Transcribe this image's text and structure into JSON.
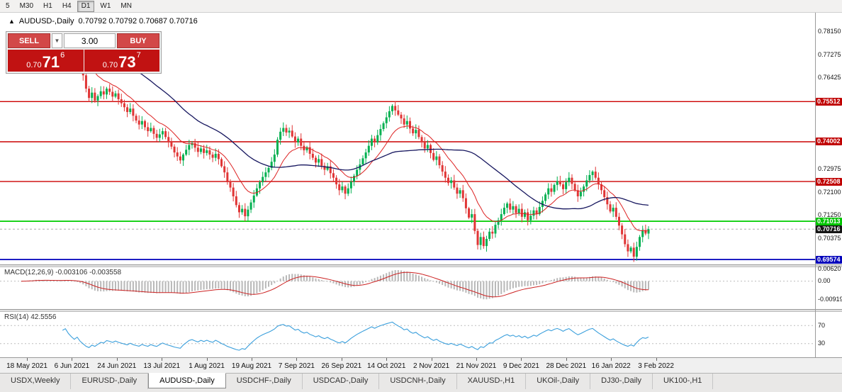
{
  "toolbar": {
    "timeframes": [
      {
        "label": "5",
        "active": false
      },
      {
        "label": "M30",
        "active": false
      },
      {
        "label": "H1",
        "active": false
      },
      {
        "label": "H4",
        "active": false
      },
      {
        "label": "D1",
        "active": true
      },
      {
        "label": "W1",
        "active": false
      },
      {
        "label": "MN",
        "active": false
      }
    ]
  },
  "chart_header": {
    "collapse_icon": "▲",
    "title": "AUDUSD-,Daily",
    "ohlc": "0.70792 0.70792 0.70687 0.70716"
  },
  "trade_panel": {
    "sell_label": "SELL",
    "buy_label": "BUY",
    "volume": "3.00",
    "dropdown_icon": "▼",
    "sell_price": {
      "small": "0.70",
      "big": "71",
      "sup": "6"
    },
    "buy_price": {
      "small": "0.70",
      "big": "73",
      "sup": "7"
    }
  },
  "price_axis": {
    "badge_colors": {
      "red": {
        "bg": "#c00000",
        "fg": "#ffffff"
      },
      "green": {
        "bg": "#00c400",
        "fg": "#ffffff"
      },
      "blue": {
        "bg": "#0000bb",
        "fg": "#ffffff"
      },
      "current": {
        "bg": "#151515",
        "fg": "#ffffff"
      }
    },
    "labels": [
      {
        "value": "0.78150",
        "price": 0.7815,
        "type": "plain"
      },
      {
        "value": "0.77275",
        "price": 0.77275,
        "type": "plain"
      },
      {
        "value": "0.76425",
        "price": 0.76425,
        "type": "plain"
      },
      {
        "value": "0.75512",
        "price": 0.75512,
        "type": "red"
      },
      {
        "value": "0.74002",
        "price": 0.74002,
        "type": "red"
      },
      {
        "value": "0.72975",
        "price": 0.72975,
        "type": "plain"
      },
      {
        "value": "0.72508",
        "price": 0.72508,
        "type": "red"
      },
      {
        "value": "0.72100",
        "price": 0.721,
        "type": "plain"
      },
      {
        "value": "0.71250",
        "price": 0.7125,
        "type": "plain"
      },
      {
        "value": "0.71013",
        "price": 0.71013,
        "type": "green"
      },
      {
        "value": "0.70716",
        "price": 0.70716,
        "type": "current"
      },
      {
        "value": "0.70375",
        "price": 0.70375,
        "type": "plain"
      },
      {
        "value": "0.69574",
        "price": 0.69574,
        "type": "blue"
      }
    ]
  },
  "hlines": [
    {
      "price": 0.75512,
      "color": "#cc0000",
      "width": 1.4,
      "dash": ""
    },
    {
      "price": 0.74002,
      "color": "#cc0000",
      "width": 1.4,
      "dash": ""
    },
    {
      "price": 0.72508,
      "color": "#cc0000",
      "width": 1.4,
      "dash": ""
    },
    {
      "price": 0.71013,
      "color": "#00cc00",
      "width": 1.8,
      "dash": ""
    },
    {
      "price": 0.70716,
      "color": "#aaaaaa",
      "width": 1,
      "dash": "3,3"
    },
    {
      "price": 0.69574,
      "color": "#0000bb",
      "width": 1.8,
      "dash": ""
    }
  ],
  "macd_panel": {
    "label": "MACD(12,26,9) -0.003106 -0.003558",
    "axis": [
      {
        "label": "0.00620",
        "value": 0.0062
      },
      {
        "label": "0.00",
        "value": 0
      },
      {
        "label": "-0.00919",
        "value": -0.00919
      }
    ]
  },
  "rsi_panel": {
    "label": "RSI(14) 42.5556",
    "axis": [
      {
        "label": "70",
        "value": 70
      },
      {
        "label": "30",
        "value": 30
      }
    ]
  },
  "time_axis": {
    "labels": [
      "18 May 2021",
      "6 Jun 2021",
      "24 Jun 2021",
      "13 Jul 2021",
      "1 Aug 2021",
      "19 Aug 2021",
      "7 Sep 2021",
      "26 Sep 2021",
      "14 Oct 2021",
      "2 Nov 2021",
      "21 Nov 2021",
      "9 Dec 2021",
      "28 Dec 2021",
      "16 Jan 2022",
      "3 Feb 2022"
    ]
  },
  "tabs": [
    {
      "label": "USDX,Weekly",
      "active": false
    },
    {
      "label": "EURUSD-,Daily",
      "active": false
    },
    {
      "label": "AUDUSD-,Daily",
      "active": true
    },
    {
      "label": "USDCHF-,Daily",
      "active": false
    },
    {
      "label": "USDCAD-,Daily",
      "active": false
    },
    {
      "label": "USDCNH-,Daily",
      "active": false
    },
    {
      "label": "XAUUSD-,H1",
      "active": false
    },
    {
      "label": "UKOil-,Daily",
      "active": false
    },
    {
      "label": "DJ30-,Daily",
      "active": false
    },
    {
      "label": "UK100-,H1",
      "active": false
    }
  ],
  "chart_data": {
    "type": "candlestick",
    "symbol": "AUDUSD-",
    "timeframe": "Daily",
    "current_ohlc": {
      "open": 0.70792,
      "high": 0.70792,
      "low": 0.70687,
      "close": 0.70716
    },
    "price_axis_range": {
      "top": 0.788,
      "bottom": 0.6939
    },
    "first_open": 0.7746,
    "closes": [
      0.7755,
      0.7768,
      0.778,
      0.7772,
      0.7786,
      0.779,
      0.7778,
      0.7765,
      0.7772,
      0.7758,
      0.7766,
      0.7774,
      0.7762,
      0.777,
      0.7782,
      0.7795,
      0.7768,
      0.7744,
      0.772,
      0.7735,
      0.769,
      0.765,
      0.76,
      0.7565,
      0.7585,
      0.7555,
      0.7572,
      0.759,
      0.7578,
      0.76,
      0.7588,
      0.757,
      0.7582,
      0.756,
      0.7545,
      0.753,
      0.7512,
      0.7525,
      0.7498,
      0.748,
      0.7465,
      0.7478,
      0.7455,
      0.744,
      0.7452,
      0.743,
      0.7415,
      0.7428,
      0.744,
      0.7418,
      0.74,
      0.7382,
      0.736,
      0.7345,
      0.733,
      0.7352,
      0.737,
      0.7388,
      0.7395,
      0.7378,
      0.7362,
      0.7375,
      0.7358,
      0.7368,
      0.7352,
      0.734,
      0.7355,
      0.7335,
      0.7308,
      0.7285,
      0.7252,
      0.7228,
      0.7195,
      0.7162,
      0.7135,
      0.7148,
      0.712,
      0.7145,
      0.7172,
      0.7198,
      0.7225,
      0.7248,
      0.7268,
      0.7285,
      0.7302,
      0.7325,
      0.7352,
      0.7408,
      0.7438,
      0.7452,
      0.7435,
      0.7442,
      0.742,
      0.7398,
      0.7412,
      0.7385,
      0.7368,
      0.738,
      0.7355,
      0.734,
      0.7322,
      0.7335,
      0.731,
      0.7295,
      0.7308,
      0.7282,
      0.7265,
      0.724,
      0.7218,
      0.7232,
      0.7205,
      0.7225,
      0.725,
      0.7272,
      0.7295,
      0.7315,
      0.7338,
      0.736,
      0.7385,
      0.7412,
      0.7398,
      0.7425,
      0.7448,
      0.747,
      0.7492,
      0.7515,
      0.7535,
      0.7518,
      0.7502,
      0.7488,
      0.7465,
      0.7478,
      0.745,
      0.7432,
      0.7445,
      0.7418,
      0.7398,
      0.7375,
      0.7388,
      0.7358,
      0.7332,
      0.7345,
      0.7312,
      0.7288,
      0.7265,
      0.7245,
      0.7255,
      0.7228,
      0.7205,
      0.7218,
      0.7188,
      0.715,
      0.7115,
      0.7128,
      0.7065,
      0.7012,
      0.7042,
      0.7008,
      0.7035,
      0.7062,
      0.7055,
      0.7088,
      0.7105,
      0.7128,
      0.7152,
      0.7168,
      0.7145,
      0.7158,
      0.7132,
      0.7148,
      0.7118,
      0.7135,
      0.7105,
      0.7122,
      0.7142,
      0.7128,
      0.7155,
      0.7178,
      0.7202,
      0.7225,
      0.7212,
      0.7238,
      0.7252,
      0.724,
      0.7222,
      0.7248,
      0.7265,
      0.7242,
      0.7218,
      0.7195,
      0.7212,
      0.7232,
      0.7255,
      0.7275,
      0.7288,
      0.7265,
      0.724,
      0.7218,
      0.7192,
      0.7165,
      0.7138,
      0.7152,
      0.7118,
      0.7085,
      0.7052,
      0.7015,
      0.6988,
      0.7002,
      0.6968,
      0.7005,
      0.7042,
      0.7068,
      0.7055,
      0.70716
    ],
    "indicators": {
      "ma_fast": {
        "type": "EMA",
        "period": 13
      },
      "ma_slow": {
        "type": "SMA",
        "period": 40
      },
      "macd": {
        "fast": 12,
        "slow": 26,
        "signal": 9,
        "value": -0.003106,
        "signal_value": -0.003558
      },
      "rsi": {
        "period": 14,
        "value": 42.5556,
        "levels": [
          70,
          30
        ]
      }
    },
    "colors": {
      "bull": "#00b050",
      "bear": "#e03535",
      "ma_fast": "#dd2222",
      "ma_slow": "#17175f",
      "macd_hist": "#b8b8b8",
      "macd_signal": "#cc2222",
      "rsi_line": "#3a9fdc",
      "level_dotted": "#bdbdbd"
    }
  }
}
